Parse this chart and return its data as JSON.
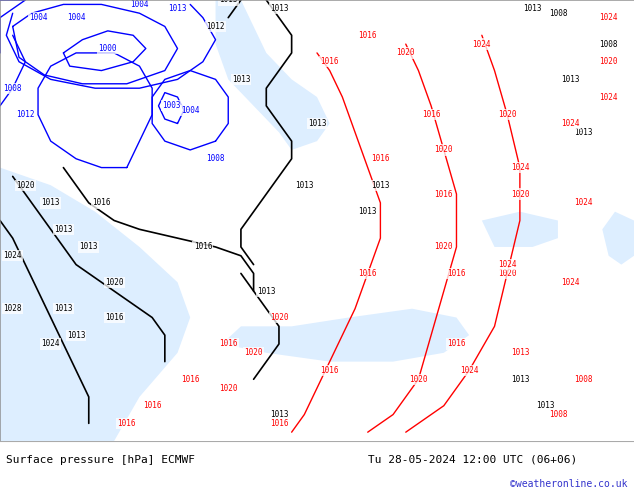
{
  "title_left": "Surface pressure [hPa] ECMWF",
  "title_right": "Tu 28-05-2024 12:00 UTC (06+06)",
  "copyright": "©weatheronline.co.uk",
  "bg_color_land": "#c8e6a0",
  "bg_color_sea": "#ddeeff",
  "bg_color_bottom": "#e0e0e0",
  "text_color_copyright": "#3333cc",
  "figsize": [
    6.34,
    4.9
  ],
  "dpi": 100,
  "label_fontsize": 8,
  "copyright_fontsize": 7
}
